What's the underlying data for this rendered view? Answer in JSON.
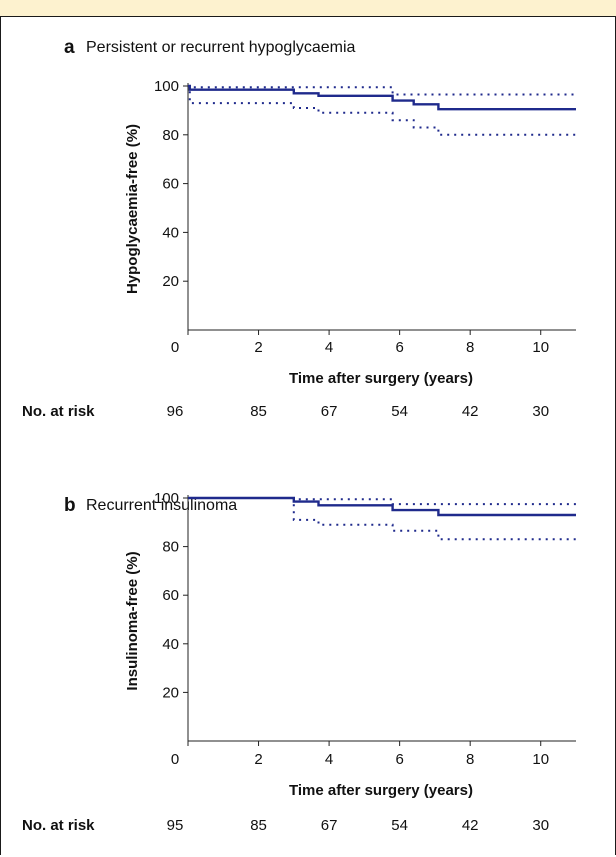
{
  "colors": {
    "band": "#fdf2cf",
    "line": "#1f2a8c"
  },
  "chart_data": [
    {
      "type": "line",
      "panel_letter": "a",
      "title": "Persistent or recurrent hypoglycaemia",
      "xlabel": "Time after surgery (years)",
      "ylabel": "Hypoglycaemia-free (%)",
      "xlim": [
        0,
        11
      ],
      "ylim": [
        0,
        100
      ],
      "x_ticks": [
        0,
        2,
        4,
        6,
        8,
        10
      ],
      "y_ticks": [
        20,
        40,
        60,
        80,
        100
      ],
      "series": [
        {
          "style": "solid",
          "x": [
            0,
            0.05,
            0.05,
            3,
            3,
            3.7,
            3.7,
            5.8,
            5.8,
            6.4,
            6.4,
            7.1,
            7.1,
            11
          ],
          "y": [
            100,
            100,
            98.5,
            98.5,
            97,
            97,
            96,
            96,
            94,
            94,
            92.5,
            92.5,
            90.5,
            90.5
          ]
        },
        {
          "style": "dotted",
          "x": [
            0,
            0.05,
            0.05,
            5.8,
            5.8,
            11
          ],
          "y": [
            100,
            100,
            99.5,
            99.5,
            96.5,
            96.5
          ]
        },
        {
          "style": "dotted",
          "x": [
            0,
            0.05,
            0.05,
            3,
            3,
            3.7,
            3.7,
            5.8,
            5.8,
            6.4,
            6.4,
            7.1,
            7.1,
            11
          ],
          "y": [
            100,
            100,
            93,
            93,
            91,
            91,
            89,
            89,
            86,
            86,
            83,
            83,
            80,
            80
          ]
        }
      ],
      "risk_table": {
        "label": "No. at risk",
        "x": [
          0,
          2,
          4,
          6,
          8,
          10
        ],
        "values": [
          "96",
          "85",
          "67",
          "54",
          "42",
          "30"
        ]
      }
    },
    {
      "type": "line",
      "panel_letter": "b",
      "title": "Recurrent insulinoma",
      "xlabel": "Time after surgery (years)",
      "ylabel": "Insulinoma-free (%)",
      "xlim": [
        0,
        11
      ],
      "ylim": [
        0,
        100
      ],
      "x_ticks": [
        0,
        2,
        4,
        6,
        8,
        10
      ],
      "y_ticks": [
        20,
        40,
        60,
        80,
        100
      ],
      "series": [
        {
          "style": "solid",
          "x": [
            0,
            3,
            3,
            3.7,
            3.7,
            5.8,
            5.8,
            7.1,
            7.1,
            11
          ],
          "y": [
            100,
            100,
            98.5,
            98.5,
            97,
            97,
            95,
            95,
            93,
            93
          ]
        },
        {
          "style": "dotted",
          "x": [
            0,
            3,
            3,
            5.8,
            5.8,
            11
          ],
          "y": [
            100,
            100,
            99.5,
            99.5,
            97.5,
            97.5
          ]
        },
        {
          "style": "dotted",
          "x": [
            0,
            3,
            3,
            3.7,
            3.7,
            5.8,
            5.8,
            7.1,
            7.1,
            11
          ],
          "y": [
            100,
            100,
            91,
            91,
            89,
            89,
            86.5,
            86.5,
            83,
            83
          ]
        }
      ],
      "risk_table": {
        "label": "No. at risk",
        "x": [
          0,
          2,
          4,
          6,
          8,
          10
        ],
        "values": [
          "95",
          "85",
          "67",
          "54",
          "42",
          "30"
        ]
      }
    }
  ]
}
